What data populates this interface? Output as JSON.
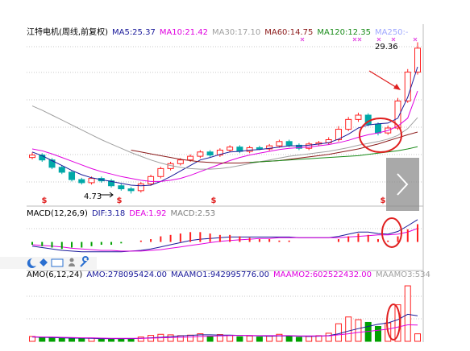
{
  "chart_data": [
    {
      "type": "candlestick",
      "title": "江特电机(周线,前复权)",
      "up_color": "#ff2020",
      "down_color": "#00a8a8",
      "ylim": [
        4,
        31
      ],
      "open": [
        10.6,
        11.0,
        10.2,
        9.0,
        8.2,
        7.0,
        6.5,
        7.2,
        6.8,
        6.0,
        5.5,
        5.2,
        6.3,
        7.5,
        8.8,
        9.6,
        10.2,
        10.8,
        11.5,
        11.0,
        11.8,
        12.3,
        11.6,
        12.2,
        12.0,
        12.5,
        13.2,
        12.6,
        12.1,
        12.8,
        13.0,
        13.5,
        15.2,
        16.8,
        17.5,
        16.0,
        14.6,
        15.4,
        19.8,
        24.5
      ],
      "high": [
        11.4,
        11.3,
        10.5,
        9.3,
        8.5,
        7.3,
        7.5,
        7.5,
        7.1,
        6.3,
        5.8,
        6.6,
        7.8,
        9.1,
        9.9,
        10.5,
        11.1,
        11.8,
        11.8,
        12.1,
        12.6,
        12.6,
        12.5,
        12.5,
        12.8,
        13.5,
        13.5,
        12.9,
        13.1,
        13.3,
        13.9,
        15.7,
        17.2,
        17.9,
        17.8,
        16.3,
        15.8,
        20.3,
        25.0,
        29.36
      ],
      "low": [
        10.3,
        9.9,
        8.7,
        7.9,
        6.7,
        6.2,
        6.2,
        6.5,
        5.7,
        5.2,
        4.73,
        4.9,
        6.0,
        7.2,
        8.5,
        9.3,
        9.9,
        10.5,
        10.7,
        10.7,
        11.5,
        11.3,
        11.3,
        11.8,
        11.7,
        12.2,
        12.3,
        11.8,
        11.8,
        12.5,
        12.7,
        13.2,
        14.9,
        16.4,
        15.7,
        14.2,
        14.3,
        15.1,
        19.5,
        24.1
      ],
      "close": [
        11.0,
        10.2,
        9.0,
        8.2,
        7.0,
        6.5,
        7.2,
        6.8,
        6.0,
        5.5,
        5.2,
        6.3,
        7.5,
        8.8,
        9.6,
        10.2,
        10.8,
        11.5,
        11.0,
        11.8,
        12.3,
        11.6,
        12.2,
        12.0,
        12.5,
        13.2,
        12.6,
        12.1,
        12.8,
        13.0,
        13.5,
        15.2,
        16.8,
        17.5,
        16.0,
        14.6,
        15.4,
        19.8,
        24.5,
        28.4
      ],
      "series": [
        {
          "name": "MA5:25.37",
          "color": "#1a1a9a",
          "values": [
            11.5,
            10.9,
            10.1,
            9.3,
            8.5,
            7.8,
            7.3,
            7.0,
            6.7,
            6.4,
            6.1,
            6.0,
            6.1,
            6.7,
            7.5,
            8.4,
            9.3,
            10.2,
            10.6,
            11.1,
            11.5,
            11.6,
            11.8,
            11.9,
            12.1,
            12.3,
            12.5,
            12.5,
            12.6,
            12.8,
            13.0,
            13.6,
            14.4,
            15.4,
            15.9,
            16.1,
            16.2,
            17.0,
            20.4,
            25.37
          ]
        },
        {
          "name": "MA10:21.42",
          "color": "#e000e0",
          "values": [
            12.0,
            11.7,
            11.2,
            10.6,
            10.0,
            9.4,
            8.8,
            8.3,
            7.9,
            7.5,
            7.2,
            6.9,
            6.7,
            6.7,
            6.9,
            7.2,
            7.7,
            8.3,
            8.9,
            9.5,
            10.1,
            10.6,
            11.0,
            11.3,
            11.6,
            11.9,
            12.1,
            12.2,
            12.3,
            12.5,
            12.7,
            13.0,
            13.4,
            13.9,
            14.3,
            14.6,
            15.0,
            15.7,
            17.0,
            21.42
          ]
        },
        {
          "name": "MA30:17.10",
          "color": "#a0a0a0",
          "values": [
            19.0,
            18.3,
            17.5,
            16.7,
            15.9,
            15.1,
            14.3,
            13.5,
            12.8,
            12.1,
            11.4,
            10.8,
            10.2,
            9.7,
            9.3,
            9.0,
            8.8,
            8.7,
            8.7,
            8.8,
            9.0,
            9.3,
            9.6,
            9.9,
            10.2,
            10.5,
            10.8,
            11.0,
            11.2,
            11.4,
            11.6,
            11.9,
            12.2,
            12.6,
            12.9,
            13.2,
            13.6,
            14.2,
            15.3,
            17.1
          ]
        },
        {
          "name": "MA60:14.75",
          "color": "#8b1a1a",
          "values": [
            null,
            null,
            null,
            null,
            null,
            null,
            null,
            null,
            null,
            null,
            11.8,
            11.5,
            11.2,
            10.9,
            10.6,
            10.3,
            10.1,
            9.9,
            9.8,
            9.7,
            9.7,
            9.7,
            9.8,
            9.9,
            10.0,
            10.1,
            10.3,
            10.5,
            10.7,
            10.9,
            11.1,
            11.4,
            11.7,
            12.0,
            12.4,
            12.8,
            13.3,
            13.8,
            14.3,
            14.75
          ]
        },
        {
          "name": "MA120:12.35",
          "color": "#1a8c1a",
          "values": [
            null,
            null,
            null,
            null,
            null,
            null,
            null,
            null,
            null,
            null,
            null,
            null,
            null,
            null,
            null,
            null,
            null,
            null,
            null,
            null,
            null,
            null,
            9.8,
            9.9,
            10.0,
            10.1,
            10.2,
            10.3,
            10.4,
            10.5,
            10.6,
            10.7,
            10.8,
            10.9,
            11.1,
            11.3,
            11.5,
            11.7,
            12.0,
            12.35
          ]
        },
        {
          "name": "MA250:-",
          "color": "#9fa8ff"
        }
      ],
      "high_label": "29.36",
      "low_label": "4.73",
      "signals": [
        "$",
        "$",
        "$",
        "$"
      ]
    },
    {
      "type": "macd",
      "title": "MACD(12,26,9)",
      "ylim": [
        -2,
        3.5
      ],
      "up_color": "#ff2020",
      "down_color": "#00a000",
      "series": [
        {
          "name": "DIF:3.18",
          "color": "#1a1a9a",
          "values": [
            -0.6,
            -0.8,
            -1.0,
            -1.2,
            -1.3,
            -1.4,
            -1.4,
            -1.4,
            -1.4,
            -1.4,
            -1.3,
            -1.2,
            -1.0,
            -0.7,
            -0.4,
            -0.1,
            0.2,
            0.4,
            0.5,
            0.6,
            0.7,
            0.7,
            0.7,
            0.7,
            0.7,
            0.7,
            0.7,
            0.6,
            0.6,
            0.6,
            0.6,
            0.8,
            1.1,
            1.4,
            1.4,
            1.2,
            1.1,
            1.5,
            2.3,
            3.18
          ]
        },
        {
          "name": "DEA:1.92",
          "color": "#e000e0",
          "values": [
            -0.4,
            -0.5,
            -0.6,
            -0.7,
            -0.9,
            -1.0,
            -1.1,
            -1.2,
            -1.2,
            -1.3,
            -1.3,
            -1.3,
            -1.2,
            -1.1,
            -0.9,
            -0.7,
            -0.5,
            -0.3,
            -0.1,
            0.1,
            0.2,
            0.3,
            0.4,
            0.5,
            0.5,
            0.6,
            0.6,
            0.6,
            0.6,
            0.6,
            0.6,
            0.6,
            0.7,
            0.8,
            0.9,
            1.0,
            1.0,
            1.1,
            1.4,
            1.92
          ]
        },
        {
          "name": "MACD:2.53",
          "color": "#808080",
          "bars": true,
          "values": [
            -0.4,
            -0.6,
            -0.8,
            -1.0,
            -0.8,
            -0.8,
            -0.6,
            -0.4,
            -0.4,
            -0.2,
            0,
            0.2,
            0.4,
            0.8,
            1.0,
            1.2,
            1.4,
            1.4,
            1.2,
            1.0,
            1.0,
            0.8,
            0.6,
            0.4,
            0.4,
            0.2,
            0.2,
            0,
            0,
            0,
            0,
            0.4,
            0.8,
            1.2,
            1.0,
            0.4,
            0.2,
            0.8,
            1.8,
            2.53
          ]
        }
      ]
    },
    {
      "type": "volume",
      "title": "AMO(6,12,24)",
      "ylim": [
        0,
        2200000000
      ],
      "up_color": "#ff2020",
      "down_color": "#00a000",
      "series": [
        {
          "name": "AMO:278095424.00",
          "color": "#1a1a9a",
          "bars": true,
          "values": [
            180000000.0,
            150000000.0,
            130000000.0,
            110000000.0,
            100000000.0,
            90000000.0,
            120000000.0,
            90000000.0,
            80000000.0,
            90000000.0,
            100000000.0,
            160000000.0,
            220000000.0,
            260000000.0,
            240000000.0,
            210000000.0,
            230000000.0,
            280000000.0,
            190000000.0,
            250000000.0,
            220000000.0,
            170000000.0,
            200000000.0,
            160000000.0,
            190000000.0,
            260000000.0,
            200000000.0,
            150000000.0,
            180000000.0,
            210000000.0,
            300000000.0,
            650000000.0,
            900000000.0,
            800000000.0,
            700000000.0,
            550000000.0,
            680000000.0,
            1350000000.0,
            2050000000.0,
            278095424
          ]
        },
        {
          "name": "MAAMO1:942995776.00",
          "color": "#1a1a9a",
          "values": [
            160000000.0,
            150000000.0,
            140000000.0,
            130000000.0,
            120000000.0,
            120000000.0,
            110000000.0,
            100000000.0,
            100000000.0,
            100000000.0,
            100000000.0,
            110000000.0,
            130000000.0,
            150000000.0,
            170000000.0,
            200000000.0,
            220000000.0,
            240000000.0,
            240000000.0,
            230000000.0,
            230000000.0,
            220000000.0,
            210000000.0,
            200000000.0,
            190000000.0,
            200000000.0,
            200000000.0,
            190000000.0,
            180000000.0,
            190000000.0,
            210000000.0,
            280000000.0,
            380000000.0,
            470000000.0,
            550000000.0,
            630000000.0,
            680000000.0,
            800000000.0,
            1000000000.0,
            942995776
          ]
        },
        {
          "name": "MAAMO2:602522432.00",
          "color": "#e000e0",
          "values": [
            170000000.0,
            160000000.0,
            160000000.0,
            150000000.0,
            140000000.0,
            130000000.0,
            130000000.0,
            120000000.0,
            110000000.0,
            110000000.0,
            110000000.0,
            110000000.0,
            120000000.0,
            130000000.0,
            140000000.0,
            150000000.0,
            160000000.0,
            180000000.0,
            190000000.0,
            200000000.0,
            210000000.0,
            220000000.0,
            220000000.0,
            210000000.0,
            210000000.0,
            210000000.0,
            210000000.0,
            200000000.0,
            200000000.0,
            200000000.0,
            200000000.0,
            240000000.0,
            280000000.0,
            330000000.0,
            370000000.0,
            410000000.0,
            450000000.0,
            530000000.0,
            610000000.0,
            602522432
          ]
        },
        {
          "name": "MAAMO3:534",
          "color": "#a0a0a0"
        }
      ]
    }
  ]
}
